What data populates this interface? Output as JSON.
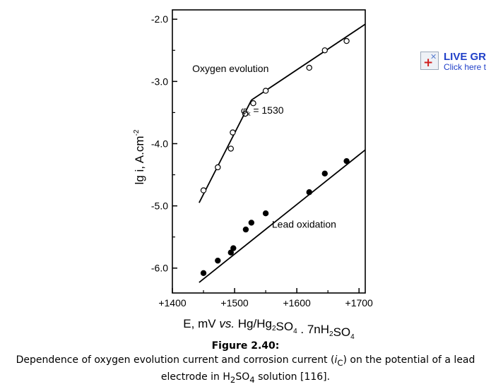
{
  "chart_data": {
    "type": "scatter",
    "xlabel": {
      "prefix": "E, mV ",
      "italic": "vs.",
      "main": " Hg/Hg",
      "sub1": "2",
      "mid": "SO",
      "sub2": "4",
      "end": " . 7nH",
      "sub3": "2",
      "end2": "SO",
      "sub4": "4"
    },
    "ylabel": {
      "main": "lg i, A.cm",
      "sup": "-2"
    },
    "xlim": [
      1400,
      1710
    ],
    "ylim": [
      -6.4,
      -1.85
    ],
    "x_ticks": [
      1400,
      1500,
      1600,
      1700
    ],
    "x_tick_labels": [
      "+1400",
      "+1500",
      "+1600",
      "+1700"
    ],
    "y_ticks": [
      -2.0,
      -3.0,
      -4.0,
      -5.0,
      -6.0
    ],
    "y_tick_labels": [
      "-2.0",
      "-3.0",
      "-4.0",
      "-5.0",
      "-6.0"
    ],
    "grid": false,
    "series": [
      {
        "name": "Oxygen evolution",
        "marker": "open-circle",
        "x": [
          1450,
          1473,
          1494,
          1497,
          1517,
          1530,
          1550,
          1620,
          1645,
          1680
        ],
        "y": [
          -4.75,
          -4.38,
          -4.08,
          -3.82,
          -3.52,
          -3.35,
          -3.15,
          -2.78,
          -2.5,
          -2.35
        ],
        "fit_segments": [
          {
            "x": [
              1443,
              1527
            ],
            "y": [
              -4.95,
              -3.3
            ]
          },
          {
            "x": [
              1527,
              1710
            ],
            "y": [
              -3.3,
              -2.08
            ]
          }
        ]
      },
      {
        "name": "Lead oxidation",
        "marker": "filled-circle",
        "x": [
          1450,
          1473,
          1494,
          1498,
          1518,
          1527,
          1550,
          1620,
          1645,
          1680
        ],
        "y": [
          -6.08,
          -5.88,
          -5.75,
          -5.68,
          -5.38,
          -5.27,
          -5.12,
          -4.78,
          -4.48,
          -4.28
        ],
        "fit_segments": [
          {
            "x": [
              1443,
              1710
            ],
            "y": [
              -6.23,
              -4.1
            ]
          }
        ]
      }
    ],
    "annotations": [
      {
        "text": "Oxygen evolution",
        "x": 1432,
        "y": -2.85
      },
      {
        "text_main": "φ",
        "text_sub": "k",
        "text_rest": " = 1530",
        "x": 1510,
        "y": -3.52
      },
      {
        "text": "Lead oxidation",
        "x": 1560,
        "y": -5.35
      }
    ]
  },
  "badge": {
    "title": "LIVE GR",
    "subtitle": "Click here t"
  },
  "caption": {
    "label": "Figure 2.40:",
    "text_parts": [
      "Dependence of oxygen evolution current and corrosion current (",
      "i",
      "C",
      ") on the potential of a lead electrode in H",
      "2",
      "SO",
      "4",
      " solution [116]."
    ]
  }
}
